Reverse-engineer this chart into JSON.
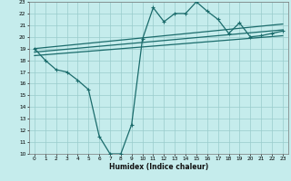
{
  "title": "",
  "xlabel": "Humidex (Indice chaleur)",
  "ylabel": "",
  "bg_color": "#c5ecec",
  "grid_color": "#99cccc",
  "line_color": "#1a6b6b",
  "xlim": [
    -0.5,
    23.5
  ],
  "ylim": [
    10,
    23
  ],
  "x_ticks": [
    0,
    1,
    2,
    3,
    4,
    5,
    6,
    7,
    8,
    9,
    10,
    11,
    12,
    13,
    14,
    15,
    16,
    17,
    18,
    19,
    20,
    21,
    22,
    23
  ],
  "y_ticks": [
    10,
    11,
    12,
    13,
    14,
    15,
    16,
    17,
    18,
    19,
    20,
    21,
    22,
    23
  ],
  "jagged_x": [
    0,
    1,
    2,
    3,
    4,
    5,
    6,
    7,
    8,
    9,
    10,
    11,
    12,
    13,
    14,
    15,
    16,
    17,
    18,
    19,
    20,
    21,
    22,
    23
  ],
  "jagged_y": [
    19.0,
    18.0,
    17.2,
    17.0,
    16.3,
    15.5,
    11.5,
    10.0,
    10.0,
    12.5,
    19.8,
    22.5,
    21.3,
    22.0,
    22.0,
    23.0,
    22.2,
    21.5,
    20.3,
    21.2,
    20.0,
    20.1,
    20.3,
    20.5
  ],
  "line1_x": [
    0,
    23
  ],
  "line1_y": [
    19.0,
    21.1
  ],
  "line2_x": [
    0,
    23
  ],
  "line2_y": [
    18.7,
    20.6
  ],
  "line3_x": [
    0,
    23
  ],
  "line3_y": [
    18.4,
    20.1
  ]
}
